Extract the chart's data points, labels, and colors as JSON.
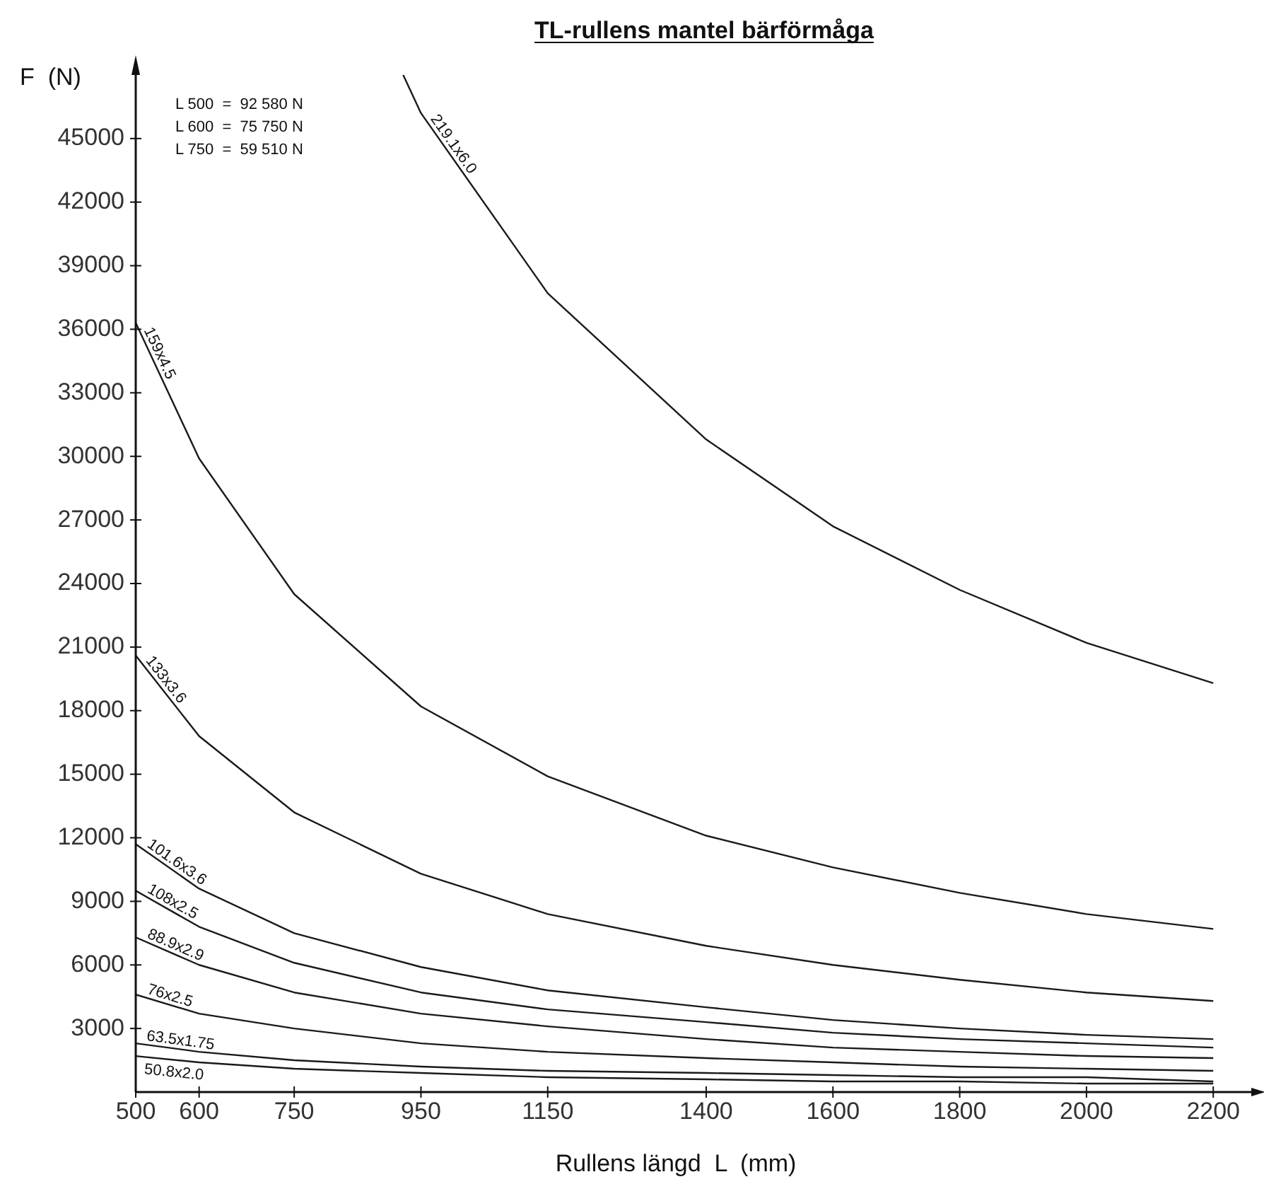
{
  "chart_data": {
    "type": "line",
    "title": "TL-rullens mantel bärförmåga",
    "xlabel": "Rullens längd  L  (mm)",
    "ylabel": "F  (N)",
    "x": [
      500,
      600,
      750,
      950,
      1150,
      1400,
      1600,
      1800,
      2000,
      2200
    ],
    "xlim": [
      500,
      2260
    ],
    "ylim": [
      0,
      48000
    ],
    "xticks": [
      500,
      600,
      750,
      950,
      1150,
      1400,
      1600,
      1800,
      2000,
      2200
    ],
    "yticks": [
      3000,
      6000,
      9000,
      12000,
      15000,
      18000,
      21000,
      24000,
      27000,
      30000,
      33000,
      36000,
      39000,
      42000,
      45000
    ],
    "grid": false,
    "legend": false,
    "marker": "none",
    "line_style": "solid",
    "annotations": [
      "L 500  =  92 580 N",
      "L 600  =  75 750 N",
      "L 750  =  59 510 N"
    ],
    "series": [
      {
        "name": "219.1x6.0",
        "color": "#1a1a1a",
        "x": [
          922,
          950,
          1150,
          1400,
          1600,
          1800,
          2000,
          2200
        ],
        "values": [
          48000,
          46200,
          37700,
          30800,
          26700,
          23700,
          21200,
          19300
        ]
      },
      {
        "name": "159x4.5",
        "color": "#1a1a1a",
        "values": [
          36300,
          29900,
          23500,
          18200,
          14900,
          12100,
          10600,
          9400,
          8400,
          7700
        ]
      },
      {
        "name": "133x3.6",
        "color": "#1a1a1a",
        "values": [
          20600,
          16800,
          13200,
          10300,
          8400,
          6900,
          6000,
          5300,
          4700,
          4300
        ]
      },
      {
        "name": "101.6x3.6",
        "color": "#1a1a1a",
        "values": [
          11700,
          9600,
          7500,
          5900,
          4800,
          4000,
          3400,
          3000,
          2700,
          2500
        ]
      },
      {
        "name": "108x2.5",
        "color": "#1a1a1a",
        "values": [
          9500,
          7800,
          6100,
          4700,
          3900,
          3300,
          2800,
          2500,
          2300,
          2100
        ]
      },
      {
        "name": "88.9x2.9",
        "color": "#1a1a1a",
        "values": [
          7300,
          6000,
          4700,
          3700,
          3100,
          2500,
          2100,
          1900,
          1700,
          1600
        ]
      },
      {
        "name": "76x2.5",
        "color": "#1a1a1a",
        "values": [
          4600,
          3700,
          3000,
          2300,
          1900,
          1600,
          1400,
          1200,
          1100,
          1000
        ]
      },
      {
        "name": "63.5x1.75",
        "color": "#1a1a1a",
        "values": [
          2300,
          1900,
          1500,
          1200,
          1000,
          900,
          800,
          700,
          700,
          500
        ]
      },
      {
        "name": "50.8x2.0",
        "color": "#1a1a1a",
        "values": [
          1700,
          1400,
          1100,
          900,
          700,
          600,
          500,
          500,
          400,
          400
        ]
      }
    ]
  }
}
